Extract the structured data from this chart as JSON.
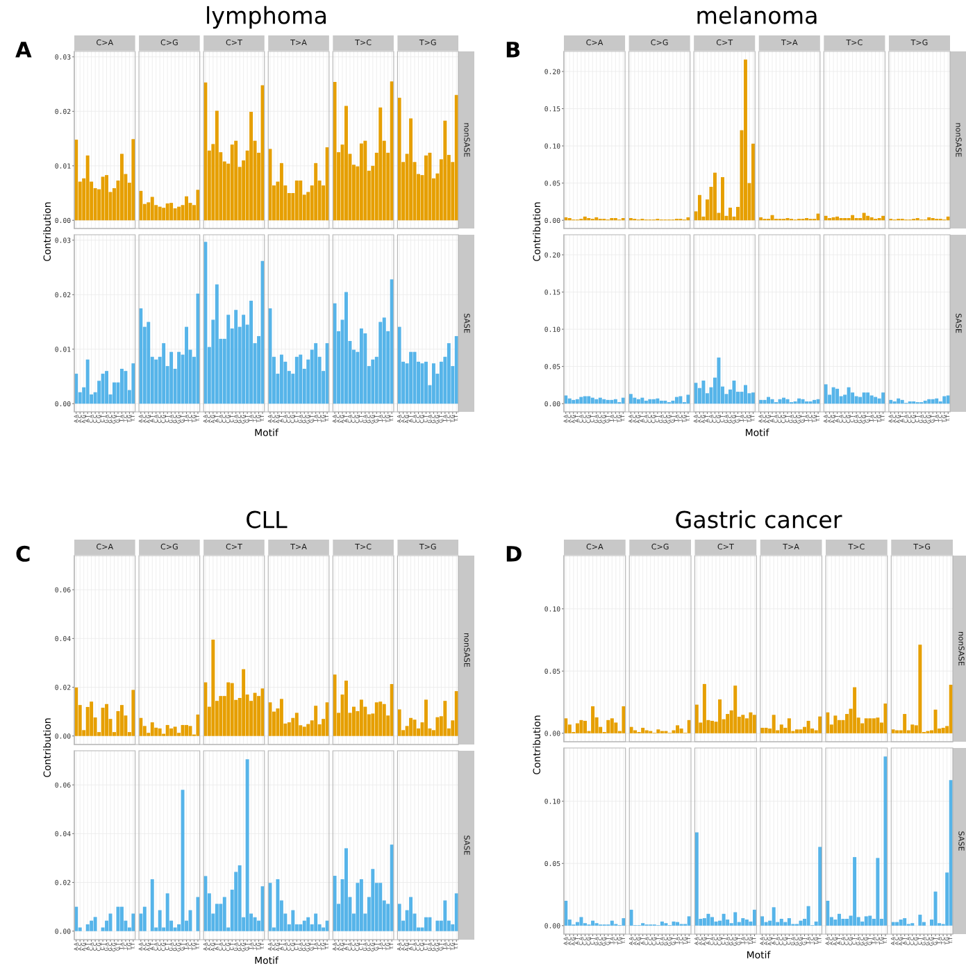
{
  "chart_data": [
    {
      "type": "bar",
      "title": "lymphoma",
      "annotations": [
        "A",
        "C>A",
        "C>G",
        "C>T",
        "T>A",
        "T>C",
        "T>G"
      ],
      "ylabel": "Contribution",
      "y2label": "nonSASE",
      "categories": [
        null,
        null,
        null,
        null,
        null,
        null,
        null,
        null,
        null,
        null,
        null,
        null,
        null,
        null,
        null,
        null,
        null,
        null,
        null,
        null,
        null,
        null,
        null,
        null,
        null,
        null,
        null,
        null,
        null,
        null,
        null,
        null,
        null,
        null,
        null,
        null,
        null,
        null,
        null,
        null,
        null,
        null,
        null,
        null,
        null,
        null,
        null,
        null,
        null,
        null,
        null,
        null,
        null,
        null,
        null,
        null,
        null,
        null,
        null,
        null,
        null,
        null,
        null,
        null,
        null,
        null,
        null,
        null,
        null,
        null,
        null,
        null,
        null,
        null,
        null,
        null,
        null,
        null,
        null,
        null,
        null,
        null,
        null,
        null,
        null,
        null,
        null,
        null,
        null,
        null,
        null,
        null,
        null,
        null,
        null,
        null,
        null,
        null,
        null,
        null,
        null
      ],
      "values": [
        0.0148,
        0.0071,
        0.0077,
        0.0119,
        0.0071,
        0.0059,
        0.0057,
        0.008,
        0.0083,
        0.0052,
        0.0059,
        0.0073,
        0.0122,
        0.0085,
        0.0069,
        0.0149,
        null,
        0.0054,
        0.003,
        0.0033,
        0.0043,
        0.0028,
        0.0025,
        0.0023,
        0.0031,
        0.0032,
        0.0022,
        0.0025,
        0.0028,
        0.0044,
        0.0032,
        0.0028,
        0.0056,
        null,
        0.0253,
        0.0128,
        0.014,
        0.0201,
        0.0125,
        0.0108,
        0.0104,
        0.0139,
        0.0146,
        0.0098,
        0.011,
        0.0128,
        0.0199,
        0.0146,
        0.0124,
        0.0248,
        null,
        0.0131,
        0.0064,
        0.0071,
        0.0105,
        0.0064,
        0.005,
        0.005,
        0.0073,
        0.0073,
        0.0047,
        0.0052,
        0.0064,
        0.0105,
        0.0073,
        0.0064,
        0.0134,
        null,
        0.0254,
        0.0125,
        0.0139,
        0.021,
        0.0122,
        0.0102,
        0.0099,
        0.0141,
        0.0146,
        0.0091,
        0.01,
        0.0124,
        0.0207,
        0.0146,
        0.0124,
        0.0255,
        null,
        0.0225,
        0.0107,
        0.0122,
        0.0187,
        0.0107,
        0.0085,
        0.0083,
        0.0119,
        0.0124,
        0.0077,
        0.0086,
        0.0112,
        0.0183,
        0.012,
        0.0107,
        0.023
      ],
      "color": "#e69f00",
      "ylim": [
        -0.0015,
        0.031
      ],
      "yticks": [
        {
          "value": 0,
          "label": "0.00"
        },
        {
          "value": 0.01,
          "label": "0.01"
        },
        {
          "value": 0.02,
          "label": "0.02"
        },
        {
          "value": 0.03,
          "label": "0.03"
        }
      ],
      "grid": true,
      "tick_labels": "y"
    },
    {
      "type": "bar",
      "xlabel": "Motif",
      "y2label": "SASE",
      "categories": [
        "A.A",
        "A.C",
        "A.G",
        "A.T",
        "C.A",
        "C.C",
        "C.G",
        "C.T",
        "G.A",
        "G.C",
        "G.G",
        "G.T",
        "T.A",
        "T.C",
        "T.G",
        "T.T",
        null,
        "A.A",
        "A.C",
        "A.G",
        "A.T",
        "C.A",
        "C.C",
        "C.G",
        "C.T",
        "G.A",
        "G.C",
        "G.G",
        "G.T",
        "T.A",
        "T.C",
        "T.G",
        "T.T",
        null,
        "A.A",
        "A.C",
        "A.G",
        "A.T",
        "C.A",
        "C.C",
        "C.G",
        "C.T",
        "G.A",
        "G.C",
        "G.G",
        "G.T",
        "T.A",
        "T.C",
        "T.G",
        "T.T",
        null,
        "A.A",
        "A.C",
        "A.G",
        "A.T",
        "C.A",
        "C.C",
        "C.G",
        "C.T",
        "G.A",
        "G.C",
        "G.G",
        "G.T",
        "T.A",
        "T.C",
        "T.G",
        "T.T",
        null,
        "A.A",
        "A.C",
        "A.G",
        "A.T",
        "C.A",
        "C.C",
        "C.G",
        "C.T",
        "G.A",
        "G.C",
        "G.G",
        "G.T",
        "T.A",
        "T.C",
        "T.G",
        "T.T",
        null,
        "A.A",
        "A.C",
        "A.G",
        "A.T",
        "C.A",
        "C.C",
        "C.G",
        "C.T",
        "G.A",
        "G.C",
        "G.G",
        "G.T",
        "T.A",
        "T.C",
        "T.G",
        "T.T"
      ],
      "values": [
        0.0055,
        0.0021,
        0.003,
        0.0081,
        0.0017,
        0.0021,
        0.0042,
        0.0055,
        0.006,
        0.0017,
        0.0039,
        0.0039,
        0.0064,
        0.006,
        0.0025,
        0.0074,
        null,
        0.0175,
        0.0141,
        0.015,
        0.0086,
        0.0081,
        0.0086,
        0.0111,
        0.0069,
        0.0095,
        0.0064,
        0.0095,
        0.009,
        0.0141,
        0.0099,
        0.0086,
        0.0202,
        null,
        0.0297,
        0.0104,
        0.0154,
        0.0219,
        0.0119,
        0.0119,
        0.0163,
        0.0138,
        0.0172,
        0.0141,
        0.0163,
        0.0145,
        0.0189,
        0.0111,
        0.0124,
        0.0262,
        null,
        0.0175,
        0.0086,
        0.0055,
        0.009,
        0.0077,
        0.006,
        0.0055,
        0.0086,
        0.009,
        0.0064,
        0.0081,
        0.0099,
        0.0111,
        0.0086,
        0.006,
        0.0111,
        null,
        0.0184,
        0.0133,
        0.0154,
        0.0205,
        0.0115,
        0.0099,
        0.0095,
        0.0138,
        0.0129,
        0.0069,
        0.0081,
        0.0086,
        0.015,
        0.0158,
        0.0133,
        0.0228,
        null,
        0.0141,
        0.0077,
        0.0074,
        0.0095,
        0.0095,
        0.0077,
        0.0074,
        0.0077,
        0.0034,
        0.0074,
        0.0055,
        0.0077,
        0.0086,
        0.0111,
        0.0069,
        0.0124
      ],
      "color": "#56b4e9",
      "ylim": [
        -0.0015,
        0.031
      ],
      "yticks": [
        {
          "value": 0,
          "label": "0.00"
        },
        {
          "value": 0.01,
          "label": "0.01"
        },
        {
          "value": 0.02,
          "label": "0.02"
        },
        {
          "value": 0.03,
          "label": "0.03"
        }
      ],
      "grid": true
    },
    {
      "type": "bar",
      "title": "melanoma",
      "annotations": [
        "B",
        "C>A",
        "C>G",
        "C>T",
        "T>A",
        "T>C",
        "T>G"
      ],
      "ylabel": "Contribution",
      "y2label": "nonSASE",
      "categories": [
        null,
        null,
        null,
        null,
        null,
        null,
        null,
        null,
        null,
        null,
        null,
        null,
        null,
        null,
        null,
        null,
        null,
        null,
        null,
        null,
        null,
        null,
        null,
        null,
        null,
        null,
        null,
        null,
        null,
        null,
        null,
        null,
        null,
        null,
        null,
        null,
        null,
        null,
        null,
        null,
        null,
        null,
        null,
        null,
        null,
        null,
        null,
        null,
        null,
        null,
        null,
        null,
        null,
        null,
        null,
        null,
        null,
        null,
        null,
        null,
        null,
        null,
        null,
        null,
        null,
        null,
        null,
        null,
        null,
        null,
        null,
        null,
        null,
        null,
        null,
        null,
        null,
        null,
        null,
        null,
        null,
        null,
        null,
        null,
        null,
        null,
        null,
        null,
        null,
        null,
        null,
        null,
        null,
        null,
        null,
        null,
        null,
        null,
        null,
        null,
        null
      ],
      "values": [
        0.004,
        0.003,
        0.001,
        0.001,
        0.002,
        0.005,
        0.003,
        0.002,
        0.004,
        0.002,
        0.002,
        0.001,
        0.003,
        0.003,
        0.001,
        0.003,
        null,
        0.003,
        0.002,
        0.001,
        0.002,
        0.001,
        0.001,
        0.001,
        0.002,
        0.001,
        0.001,
        0.001,
        0.001,
        0.002,
        0.002,
        0.001,
        0.004,
        null,
        0.012,
        0.034,
        0.005,
        0.028,
        0.045,
        0.064,
        0.01,
        0.058,
        0.006,
        0.017,
        0.005,
        0.018,
        0.121,
        0.216,
        0.05,
        0.103,
        null,
        0.004,
        0.002,
        0.002,
        0.007,
        0.002,
        0.002,
        0.002,
        0.003,
        0.002,
        0.001,
        0.002,
        0.002,
        0.003,
        0.002,
        0.002,
        0.009,
        null,
        0.006,
        0.003,
        0.004,
        0.005,
        0.003,
        0.003,
        0.003,
        0.007,
        0.003,
        0.003,
        0.01,
        0.006,
        0.004,
        0.002,
        0.003,
        0.006,
        null,
        0.002,
        0.001,
        0.002,
        0.002,
        0.001,
        0.001,
        0.002,
        0.003,
        0.001,
        0.001,
        0.004,
        0.003,
        0.002,
        0.002,
        0.001,
        0.005
      ],
      "color": "#e69f00",
      "ylim": [
        -0.011,
        0.227
      ],
      "yticks": [
        {
          "value": 0,
          "label": "0.00"
        },
        {
          "value": 0.05,
          "label": "0.05"
        },
        {
          "value": 0.1,
          "label": "0.10"
        },
        {
          "value": 0.15,
          "label": "0.15"
        },
        {
          "value": 0.2,
          "label": "0.20"
        }
      ],
      "grid": true,
      "tick_labels": "y"
    },
    {
      "type": "bar",
      "xlabel": "Motif",
      "y2label": "SASE",
      "categories": [
        "A.A",
        "A.C",
        "A.G",
        "A.T",
        "C.A",
        "C.C",
        "C.G",
        "C.T",
        "G.A",
        "G.C",
        "G.G",
        "G.T",
        "T.A",
        "T.C",
        "T.G",
        "T.T",
        null,
        "A.A",
        "A.C",
        "A.G",
        "A.T",
        "C.A",
        "C.C",
        "C.G",
        "C.T",
        "G.A",
        "G.C",
        "G.G",
        "G.T",
        "T.A",
        "T.C",
        "T.G",
        "T.T",
        null,
        "A.A",
        "A.C",
        "A.G",
        "A.T",
        "C.A",
        "C.C",
        "C.G",
        "C.T",
        "G.A",
        "G.C",
        "G.G",
        "G.T",
        "T.A",
        "T.C",
        "T.G",
        "T.T",
        null,
        "A.A",
        "A.C",
        "A.G",
        "A.T",
        "C.A",
        "C.C",
        "C.G",
        "C.T",
        "G.A",
        "G.C",
        "G.G",
        "G.T",
        "T.A",
        "T.C",
        "T.G",
        "T.T",
        null,
        "A.A",
        "A.C",
        "A.G",
        "A.T",
        "C.A",
        "C.C",
        "C.G",
        "C.T",
        "G.A",
        "G.C",
        "G.G",
        "G.T",
        "T.A",
        "T.C",
        "T.G",
        "T.T",
        null,
        "A.A",
        "A.C",
        "A.G",
        "A.T",
        "C.A",
        "C.C",
        "C.G",
        "C.T",
        "G.A",
        "G.C",
        "G.G",
        "G.T",
        "T.A",
        "T.C",
        "T.G",
        "T.T"
      ],
      "values": [
        0.011,
        0.007,
        0.005,
        0.006,
        0.009,
        0.01,
        0.01,
        0.008,
        0.006,
        0.008,
        0.006,
        0.005,
        0.005,
        0.006,
        0.002,
        0.008,
        null,
        0.013,
        0.008,
        0.006,
        0.008,
        0.004,
        0.006,
        0.006,
        0.007,
        0.004,
        0.004,
        0.002,
        0.004,
        0.009,
        0.01,
        0.002,
        0.012,
        null,
        0.028,
        0.021,
        0.031,
        0.014,
        0.022,
        0.035,
        0.062,
        0.023,
        0.013,
        0.019,
        0.031,
        0.016,
        0.016,
        0.025,
        0.014,
        0.015,
        null,
        0.005,
        0.005,
        0.009,
        0.006,
        0.002,
        0.006,
        0.008,
        0.006,
        0.002,
        0.003,
        0.007,
        0.006,
        0.003,
        0.003,
        0.005,
        0.006,
        null,
        0.026,
        0.012,
        0.022,
        0.02,
        0.01,
        0.012,
        0.022,
        0.015,
        0.01,
        0.009,
        0.015,
        0.015,
        0.011,
        0.009,
        0.007,
        0.015,
        null,
        0.005,
        0.003,
        0.007,
        0.005,
        0.001,
        0.003,
        0.003,
        0.002,
        0.002,
        0.004,
        0.006,
        0.006,
        0.007,
        0.003,
        0.01,
        0.011
      ],
      "color": "#56b4e9",
      "ylim": [
        -0.011,
        0.227
      ],
      "yticks": [
        {
          "value": 0,
          "label": "0.00"
        },
        {
          "value": 0.05,
          "label": "0.05"
        },
        {
          "value": 0.1,
          "label": "0.10"
        },
        {
          "value": 0.15,
          "label": "0.15"
        },
        {
          "value": 0.2,
          "label": "0.20"
        }
      ],
      "grid": true
    },
    {
      "type": "bar",
      "title": "CLL",
      "annotations": [
        "C",
        "C>A",
        "C>G",
        "C>T",
        "T>A",
        "T>C",
        "T>G"
      ],
      "ylabel": "Contribution",
      "y2label": "nonSASE",
      "categories": [
        null,
        null,
        null,
        null,
        null,
        null,
        null,
        null,
        null,
        null,
        null,
        null,
        null,
        null,
        null,
        null,
        null,
        null,
        null,
        null,
        null,
        null,
        null,
        null,
        null,
        null,
        null,
        null,
        null,
        null,
        null,
        null,
        null,
        null,
        null,
        null,
        null,
        null,
        null,
        null,
        null,
        null,
        null,
        null,
        null,
        null,
        null,
        null,
        null,
        null,
        null,
        null,
        null,
        null,
        null,
        null,
        null,
        null,
        null,
        null,
        null,
        null,
        null,
        null,
        null,
        null,
        null,
        null,
        null,
        null,
        null,
        null,
        null,
        null,
        null,
        null,
        null,
        null,
        null,
        null,
        null,
        null,
        null,
        null,
        null,
        null,
        null,
        null,
        null,
        null,
        null,
        null,
        null,
        null,
        null,
        null,
        null,
        null,
        null,
        null,
        null
      ],
      "values": [
        0.0199,
        0.0127,
        0.0024,
        0.0119,
        0.0141,
        0.0076,
        0.0016,
        0.0116,
        0.0131,
        0.007,
        0.0016,
        0.0102,
        0.0127,
        0.0084,
        0.0016,
        0.0189,
        null,
        0.0074,
        0.0041,
        0.0013,
        0.0056,
        0.0034,
        0.0031,
        0.0009,
        0.0045,
        0.0031,
        0.0038,
        0.0013,
        0.0045,
        0.0045,
        0.0041,
        0.0006,
        0.0088,
        null,
        0.022,
        0.012,
        0.0395,
        0.0144,
        0.0164,
        0.0164,
        0.022,
        0.0217,
        0.0148,
        0.0156,
        0.0274,
        0.017,
        0.0144,
        0.0177,
        0.0164,
        0.0195,
        null,
        0.0138,
        0.01,
        0.0113,
        0.0152,
        0.0051,
        0.0056,
        0.0074,
        0.0095,
        0.0044,
        0.0038,
        0.0049,
        0.0064,
        0.0124,
        0.0048,
        0.007,
        0.0138,
        null,
        0.0252,
        0.0095,
        0.017,
        0.0227,
        0.0095,
        0.012,
        0.0102,
        0.0149,
        0.012,
        0.0089,
        0.0092,
        0.0138,
        0.0141,
        0.0131,
        0.0084,
        0.0213,
        null,
        0.0109,
        0.0024,
        0.0041,
        0.0074,
        0.0067,
        0.0031,
        0.0056,
        0.0149,
        0.0031,
        0.0024,
        0.0077,
        0.0081,
        0.0144,
        0.0031,
        0.0064,
        0.0184
      ],
      "color": "#e69f00",
      "ylim": [
        -0.0035,
        0.074
      ],
      "yticks": [
        {
          "value": 0,
          "label": "0.00"
        },
        {
          "value": 0.02,
          "label": "0.02"
        },
        {
          "value": 0.04,
          "label": "0.04"
        },
        {
          "value": 0.06,
          "label": "0.06"
        }
      ],
      "grid": true,
      "tick_labels": "y"
    },
    {
      "type": "bar",
      "xlabel": "Motif",
      "y2label": "SASE",
      "categories": [
        "A.A",
        "A.C",
        "A.G",
        "A.T",
        "C.A",
        "C.C",
        "C.G",
        "C.T",
        "G.A",
        "G.C",
        "G.G",
        "G.T",
        "T.A",
        "T.C",
        "T.G",
        "T.T",
        null,
        "A.A",
        "A.C",
        "A.G",
        "A.T",
        "C.A",
        "C.C",
        "C.G",
        "C.T",
        "G.A",
        "G.C",
        "G.G",
        "G.T",
        "T.A",
        "T.C",
        "T.G",
        "T.T",
        null,
        "A.A",
        "A.C",
        "A.G",
        "A.T",
        "C.A",
        "C.C",
        "C.G",
        "C.T",
        "G.A",
        "G.C",
        "G.G",
        "G.T",
        "T.A",
        "T.C",
        "T.G",
        "T.T",
        null,
        "A.A",
        "A.C",
        "A.G",
        "A.T",
        "C.A",
        "C.C",
        "C.G",
        "C.T",
        "G.A",
        "G.C",
        "G.G",
        "G.T",
        "T.A",
        "T.C",
        "T.G",
        "T.T",
        null,
        "A.A",
        "A.C",
        "A.G",
        "A.T",
        "C.A",
        "C.C",
        "C.G",
        "C.T",
        "G.A",
        "G.C",
        "G.G",
        "G.T",
        "T.A",
        "T.C",
        "T.G",
        "T.T",
        null,
        "A.A",
        "A.C",
        "A.G",
        "A.T",
        "C.A",
        "C.C",
        "C.G",
        "C.T",
        "G.A",
        "G.C",
        "G.G",
        "G.T",
        "T.A",
        "T.C",
        "T.G",
        "T.T"
      ],
      "values": [
        0.01,
        0.0015,
        0,
        0.0028,
        0.0043,
        0.0058,
        0,
        0.0015,
        0.0043,
        0.0072,
        0,
        0.01,
        0.01,
        0.0043,
        0.0015,
        0.0072,
        null,
        0.0072,
        0.01,
        0,
        0.0213,
        0.0015,
        0.0086,
        0.0015,
        0.0155,
        0.0043,
        0.0015,
        0.0028,
        0.058,
        0.0043,
        0.0086,
        0,
        0.014,
        null,
        0.0226,
        0.0155,
        0.0072,
        0.0112,
        0.0112,
        0.014,
        0.0015,
        0.017,
        0.0243,
        0.027,
        0.0057,
        0.0705,
        0.0072,
        0.0057,
        0.0043,
        0.0184,
        null,
        0.0198,
        0.0015,
        0.0213,
        0.0126,
        0.0072,
        0.0028,
        0.0086,
        0.0028,
        0.0028,
        0.0043,
        0.0057,
        0.0028,
        0.0072,
        0.0028,
        0.0015,
        0.0043,
        null,
        0.0227,
        0.0112,
        0.0213,
        0.034,
        0.014,
        0.0072,
        0.0198,
        0.0213,
        0.0072,
        0.014,
        0.0255,
        0.0198,
        0.0198,
        0.0126,
        0.0112,
        0.0355,
        null,
        0.0112,
        0.0043,
        0.0086,
        0.014,
        0.0072,
        0.0015,
        0.0015,
        0.0057,
        0.0057,
        0,
        0.0043,
        0.0043,
        0.0126,
        0.0043,
        0.0028,
        0.0155
      ],
      "color": "#56b4e9",
      "ylim": [
        -0.0035,
        0.074
      ],
      "yticks": [
        {
          "value": 0,
          "label": "0.00"
        },
        {
          "value": 0.02,
          "label": "0.02"
        },
        {
          "value": 0.04,
          "label": "0.04"
        },
        {
          "value": 0.06,
          "label": "0.06"
        }
      ],
      "grid": true
    },
    {
      "type": "bar",
      "title": "Gastric cancer",
      "annotations": [
        "D",
        "C>A",
        "C>G",
        "C>T",
        "T>A",
        "T>C",
        "T>G"
      ],
      "ylabel": "Contribution",
      "y2label": "nonSASE",
      "categories": [
        null,
        null,
        null,
        null,
        null,
        null,
        null,
        null,
        null,
        null,
        null,
        null,
        null,
        null,
        null,
        null,
        null,
        null,
        null,
        null,
        null,
        null,
        null,
        null,
        null,
        null,
        null,
        null,
        null,
        null,
        null,
        null,
        null,
        null,
        null,
        null,
        null,
        null,
        null,
        null,
        null,
        null,
        null,
        null,
        null,
        null,
        null,
        null,
        null,
        null,
        null,
        null,
        null,
        null,
        null,
        null,
        null,
        null,
        null,
        null,
        null,
        null,
        null,
        null,
        null,
        null,
        null,
        null,
        null,
        null,
        null,
        null,
        null,
        null,
        null,
        null,
        null,
        null,
        null,
        null,
        null,
        null,
        null,
        null,
        null,
        null,
        null,
        null,
        null,
        null,
        null,
        null,
        null,
        null,
        null,
        null,
        null,
        null,
        null,
        null,
        null
      ],
      "values": [
        0.012,
        0.007,
        0.001,
        0.008,
        0.0106,
        0.01,
        0.0018,
        0.0217,
        0.0128,
        0.0051,
        0.001,
        0.0106,
        0.012,
        0.0086,
        0.0018,
        0.0217,
        null,
        0.0051,
        0.0024,
        0.001,
        0.0044,
        0.0024,
        0.0018,
        0.0004,
        0.0031,
        0.0018,
        0.0018,
        0.0004,
        0.0024,
        0.0064,
        0.0038,
        0.0004,
        0.0106,
        null,
        0.023,
        0.0086,
        0.0396,
        0.0106,
        0.01,
        0.0093,
        0.0272,
        0.0113,
        0.0155,
        0.0184,
        0.0383,
        0.0133,
        0.0148,
        0.012,
        0.0168,
        0.0148,
        null,
        0.0044,
        0.0044,
        0.0038,
        0.0148,
        0.0024,
        0.007,
        0.0044,
        0.012,
        0.0018,
        0.0031,
        0.0031,
        0.0051,
        0.01,
        0.0038,
        0.0024,
        0.0135,
        null,
        0.0168,
        0.007,
        0.0142,
        0.0106,
        0.0106,
        0.0155,
        0.0197,
        0.037,
        0.0126,
        0.008,
        0.012,
        0.012,
        0.012,
        0.0126,
        0.0086,
        0.0239,
        null,
        0.0031,
        0.0024,
        0.0024,
        0.0155,
        0.0024,
        0.007,
        0.0064,
        0.0712,
        0.001,
        0.0018,
        0.0024,
        0.019,
        0.0038,
        0.0044,
        0.0058,
        0.039
      ],
      "color": "#e69f00",
      "ylim": [
        -0.0068,
        0.1428
      ],
      "yticks": [
        {
          "value": 0,
          "label": "0.00"
        },
        {
          "value": 0.05,
          "label": "0.05"
        },
        {
          "value": 0.1,
          "label": "0.10"
        }
      ],
      "grid": true,
      "tick_labels": "y"
    },
    {
      "type": "bar",
      "xlabel": "Motif",
      "y2label": "SASE",
      "categories": [
        "A.A",
        "A.C",
        "A.G",
        "A.T",
        "C.A",
        "C.C",
        "C.G",
        "C.T",
        "G.A",
        "G.C",
        "G.G",
        "G.T",
        "T.A",
        "T.C",
        "T.G",
        "T.T",
        null,
        "A.A",
        "A.C",
        "A.G",
        "A.T",
        "C.A",
        "C.C",
        "C.G",
        "C.T",
        "G.A",
        "G.C",
        "G.G",
        "G.T",
        "T.A",
        "T.C",
        "T.G",
        "T.T",
        null,
        "A.A",
        "A.C",
        "A.G",
        "A.T",
        "C.A",
        "C.C",
        "C.G",
        "C.T",
        "G.A",
        "G.C",
        "G.G",
        "G.T",
        "T.A",
        "T.C",
        "T.G",
        "T.T",
        null,
        "A.A",
        "A.C",
        "A.G",
        "A.T",
        "C.A",
        "C.C",
        "C.G",
        "C.T",
        "G.A",
        "G.C",
        "G.G",
        "G.T",
        "T.A",
        "T.C",
        "T.G",
        "T.T",
        null,
        "A.A",
        "A.C",
        "A.G",
        "A.T",
        "C.A",
        "C.C",
        "C.G",
        "C.T",
        "G.A",
        "G.C",
        "G.G",
        "G.T",
        "T.A",
        "T.C",
        "T.G",
        "T.T",
        null,
        "A.A",
        "A.C",
        "A.G",
        "A.T",
        "C.A",
        "C.C",
        "C.G",
        "C.T",
        "G.A",
        "G.C",
        "G.G",
        "G.T",
        "T.A",
        "T.C",
        "T.G",
        "T.T"
      ],
      "values": [
        0.02,
        0.0049,
        0.0009,
        0.0029,
        0.0069,
        0.002,
        0.0009,
        0.004,
        0.002,
        0.0009,
        0.0009,
        0.0009,
        0.004,
        0.0013,
        0.0004,
        0.006,
        null,
        0.0128,
        0.0004,
        0.0004,
        0.002,
        0.0009,
        0.0009,
        0.0009,
        0.0004,
        0.0033,
        0.002,
        0.0004,
        0.0033,
        0.0029,
        0.0013,
        0.0013,
        0.0075,
        null,
        0.075,
        0.0055,
        0.006,
        0.0095,
        0.0069,
        0.0033,
        0.004,
        0.0095,
        0.0049,
        0.002,
        0.0108,
        0.0029,
        0.006,
        0.0049,
        0.0033,
        0.0128,
        null,
        0.0075,
        0.0029,
        0.004,
        0.0148,
        0.0029,
        0.0055,
        0.0029,
        0.006,
        0.0013,
        0.0013,
        0.004,
        0.0055,
        0.0157,
        0.0004,
        0.0033,
        0.0633,
        null,
        0.02,
        0.0069,
        0.0049,
        0.0095,
        0.0055,
        0.0055,
        0.008,
        0.0551,
        0.0069,
        0.0033,
        0.0075,
        0.008,
        0.0055,
        0.0544,
        0.0055,
        0.136,
        null,
        0.0029,
        0.0029,
        0.0049,
        0.006,
        0.0013,
        0.002,
        0,
        0.0088,
        0.0029,
        0,
        0.0049,
        0.0274,
        0.002,
        0.0013,
        0.0427,
        0.117
      ],
      "color": "#56b4e9",
      "ylim": [
        -0.0068,
        0.1428
      ],
      "yticks": [
        {
          "value": 0,
          "label": "0.00"
        },
        {
          "value": 0.05,
          "label": "0.05"
        },
        {
          "value": 0.1,
          "label": "0.10"
        }
      ],
      "grid": true
    }
  ]
}
